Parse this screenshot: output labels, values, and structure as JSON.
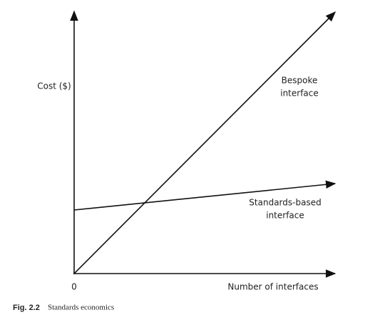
{
  "figure": {
    "y_axis_label": "Cost ($)",
    "x_axis_label": "Number of interfaces",
    "origin_label": "0",
    "lines": [
      {
        "label_lines": [
          "Bespoke",
          "interface"
        ]
      },
      {
        "label_lines": [
          "Standards-based",
          "interface"
        ]
      }
    ],
    "caption": {
      "number": "Fig. 2.2",
      "text": "Standards economics"
    }
  }
}
